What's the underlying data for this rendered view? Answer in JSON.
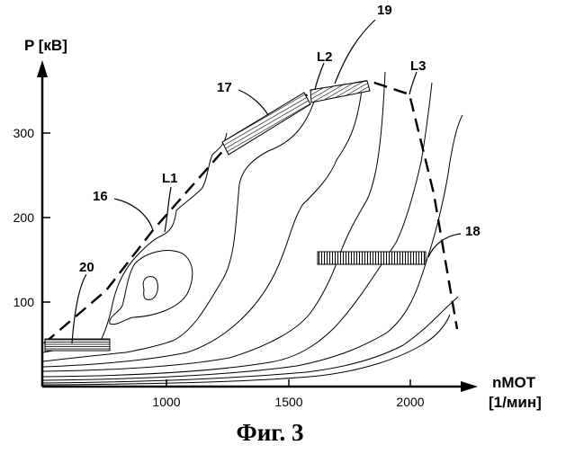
{
  "y_axis": {
    "label": "P [кВ]",
    "ticks": [
      "100",
      "200",
      "300"
    ]
  },
  "x_axis": {
    "label_line1": "nMOT",
    "label_line2": "[1/мин]",
    "ticks": [
      "1000",
      "1500",
      "2000"
    ]
  },
  "callouts": {
    "c16": "16",
    "c17": "17",
    "c18": "18",
    "c19": "19",
    "c20": "20",
    "L1": "L1",
    "L2": "L2",
    "L3": "L3"
  },
  "caption": "Фиг. 3"
}
